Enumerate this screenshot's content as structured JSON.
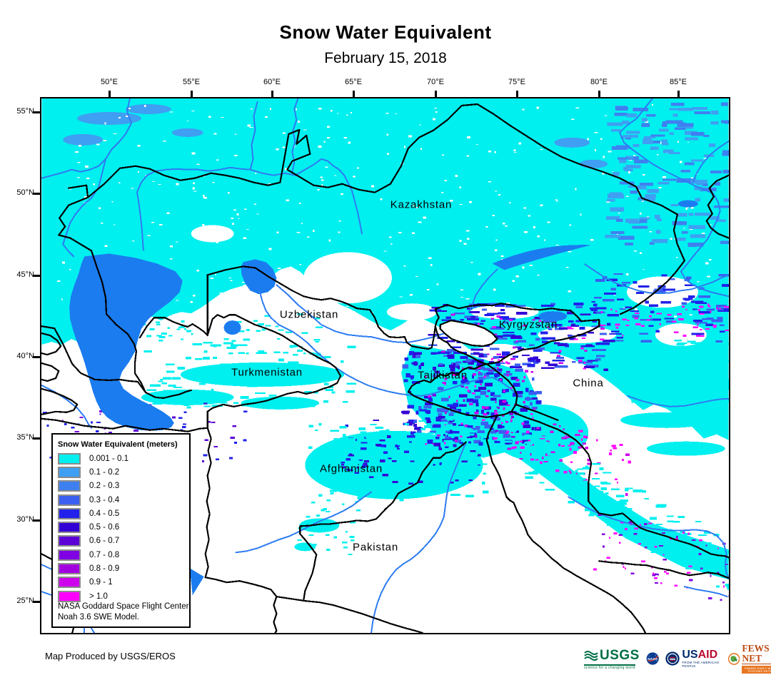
{
  "title": "Snow Water Equivalent",
  "subtitle": "February 15, 2018",
  "axes": {
    "longitude_labels": [
      "50°E",
      "55°E",
      "60°E",
      "65°E",
      "70°E",
      "75°E",
      "80°E",
      "85°E"
    ],
    "latitude_labels": [
      "55°N",
      "50°N",
      "45°N",
      "40°N",
      "35°N",
      "30°N",
      "25°N"
    ]
  },
  "map": {
    "countries": [
      "Kazakhstan",
      "Uzbekistan",
      "Turkmenistan",
      "Kyrgyzstan",
      "Tajikistan",
      "China",
      "Afghanistan",
      "Pakistan"
    ]
  },
  "legend": {
    "title": "Snow Water Equivalent (meters)",
    "classes": [
      {
        "label": "0.001 - 0.1",
        "color": "#00EFEF"
      },
      {
        "label": "0.1 - 0.2",
        "color": "#3F9FF2"
      },
      {
        "label": "0.2 - 0.3",
        "color": "#3F80F0"
      },
      {
        "label": "0.3 - 0.4",
        "color": "#3B5FF0"
      },
      {
        "label": "0.4 - 0.5",
        "color": "#2121EB"
      },
      {
        "label": "0.5 - 0.6",
        "color": "#3300D6"
      },
      {
        "label": "0.6 - 0.7",
        "color": "#5C00D6"
      },
      {
        "label": "0.7 - 0.8",
        "color": "#7F00E3"
      },
      {
        "label": "0.8 - 0.9",
        "color": "#A300E0"
      },
      {
        "label": "0.9 - 1",
        "color": "#CC00EB"
      },
      {
        "label": "> 1.0",
        "color": "#FF00FF"
      }
    ],
    "note_lines": [
      "NASA Goddard Space Flight Center",
      "Noah 3.6 SWE Model."
    ]
  },
  "credit": "Map Produced by USGS/EROS",
  "logos": {
    "usgs": {
      "name": "USGS",
      "tagline": "science for a changing world",
      "green": "#006F45"
    },
    "nasa": {
      "name": "NASA",
      "blue": "#0B3D91",
      "red": "#FC3D21"
    },
    "usaid": {
      "name_us": "US",
      "name_aid": "AID",
      "tagline": "FROM THE AMERICAN PEOPLE",
      "blue": "#002A6C",
      "red": "#BA0C2F"
    },
    "fews": {
      "name": "FEWS NET",
      "tagline": "FAMINE EARLY WARNING SYSTEMS NETWORK",
      "orange": "#E87722",
      "rust": "#BF4A12"
    }
  },
  "map_colors": {
    "snow_min": "#00EFEF",
    "water": "#1B7CF0",
    "river": "#2E7CF2",
    "border": "#000000"
  }
}
